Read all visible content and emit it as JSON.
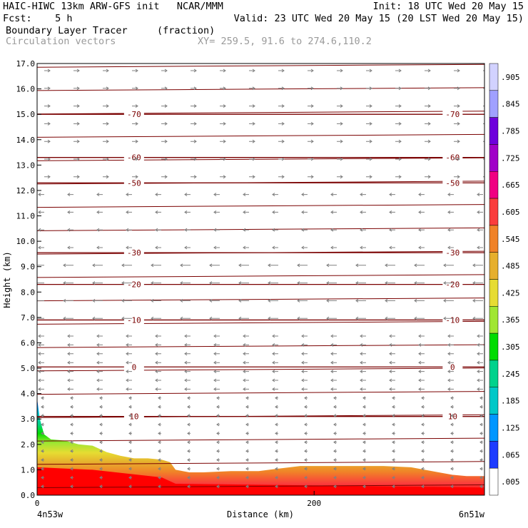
{
  "header": {
    "model": "HAIC-HIWC 13km ARW-GFS init",
    "center": "NCAR/MMM",
    "init": "Init: 18 UTC Wed 20 May 15",
    "fcst_label": "Fcst:",
    "fcst_value": "5 h",
    "valid": "Valid: 23 UTC Wed 20 May 15 (20 LST Wed 20 May 15)",
    "field": "Boundary Layer Tracer",
    "field_units": "(fraction)",
    "overlay": "Circulation vectors",
    "xy": "XY= 259.5, 91.6 to 274.6,110.2"
  },
  "chart_data": {
    "type": "heatmap",
    "xlabel": "Distance (km)",
    "ylabel": "Height (km)",
    "xlim": [
      0,
      323
    ],
    "ylim": [
      0,
      17
    ],
    "x_ticks": [
      {
        "value": 0,
        "label": "0"
      },
      {
        "value": 200,
        "label": "200"
      }
    ],
    "x_end_labels": {
      "left": "4n53w",
      "right": "6n51w"
    },
    "y_ticks": [
      "0.0",
      "1.0",
      "2.0",
      "3.0",
      "4.0",
      "5.0",
      "6.0",
      "7.0",
      "8.0",
      "9.0",
      "10.0",
      "11.0",
      "12.0",
      "13.0",
      "14.0",
      "15.0",
      "16.0",
      "17.0"
    ],
    "colorbar": {
      "labels": [
        ".005",
        ".065",
        ".125",
        ".185",
        ".245",
        ".305",
        ".365",
        ".425",
        ".485",
        ".545",
        ".605",
        ".665",
        ".725",
        ".785",
        ".845",
        ".905"
      ],
      "colors": [
        "#ffffff",
        "#1e3cff",
        "#0096ff",
        "#00c8c8",
        "#00d28c",
        "#00dc00",
        "#a0e632",
        "#e6dc32",
        "#e6af2d",
        "#f08228",
        "#fa3c3c",
        "#f00082",
        "#a000c8",
        "#6e00dc",
        "#a0a0ff",
        "#d2d2ff"
      ]
    },
    "tracer_profile": {
      "x_km": [
        0,
        2,
        5,
        10,
        20,
        30,
        40,
        50,
        60,
        70,
        80,
        90,
        96,
        100,
        110,
        120,
        140,
        160,
        175,
        190,
        210,
        230,
        250,
        270,
        290,
        300,
        310,
        323
      ],
      "top_height_km": [
        3.8,
        3.0,
        2.4,
        2.2,
        2.15,
        2.0,
        1.95,
        1.7,
        1.55,
        1.45,
        1.45,
        1.4,
        1.3,
        1.0,
        0.9,
        0.9,
        0.95,
        0.95,
        1.05,
        1.15,
        1.15,
        1.15,
        1.15,
        1.1,
        0.9,
        0.8,
        0.75,
        0.75
      ]
    },
    "temperature_contours": [
      {
        "label": "10",
        "height_km": 3.1
      },
      {
        "label": "0",
        "height_km": 5.05
      },
      {
        "label": "-10",
        "height_km": 6.9
      },
      {
        "label": "-20",
        "height_km": 8.3
      },
      {
        "label": "-30",
        "height_km": 9.55
      },
      {
        "label": "-50",
        "height_km": 12.3
      },
      {
        "label": "-60",
        "height_km": 13.3
      },
      {
        "label": "-70",
        "height_km": 15.0
      }
    ]
  }
}
